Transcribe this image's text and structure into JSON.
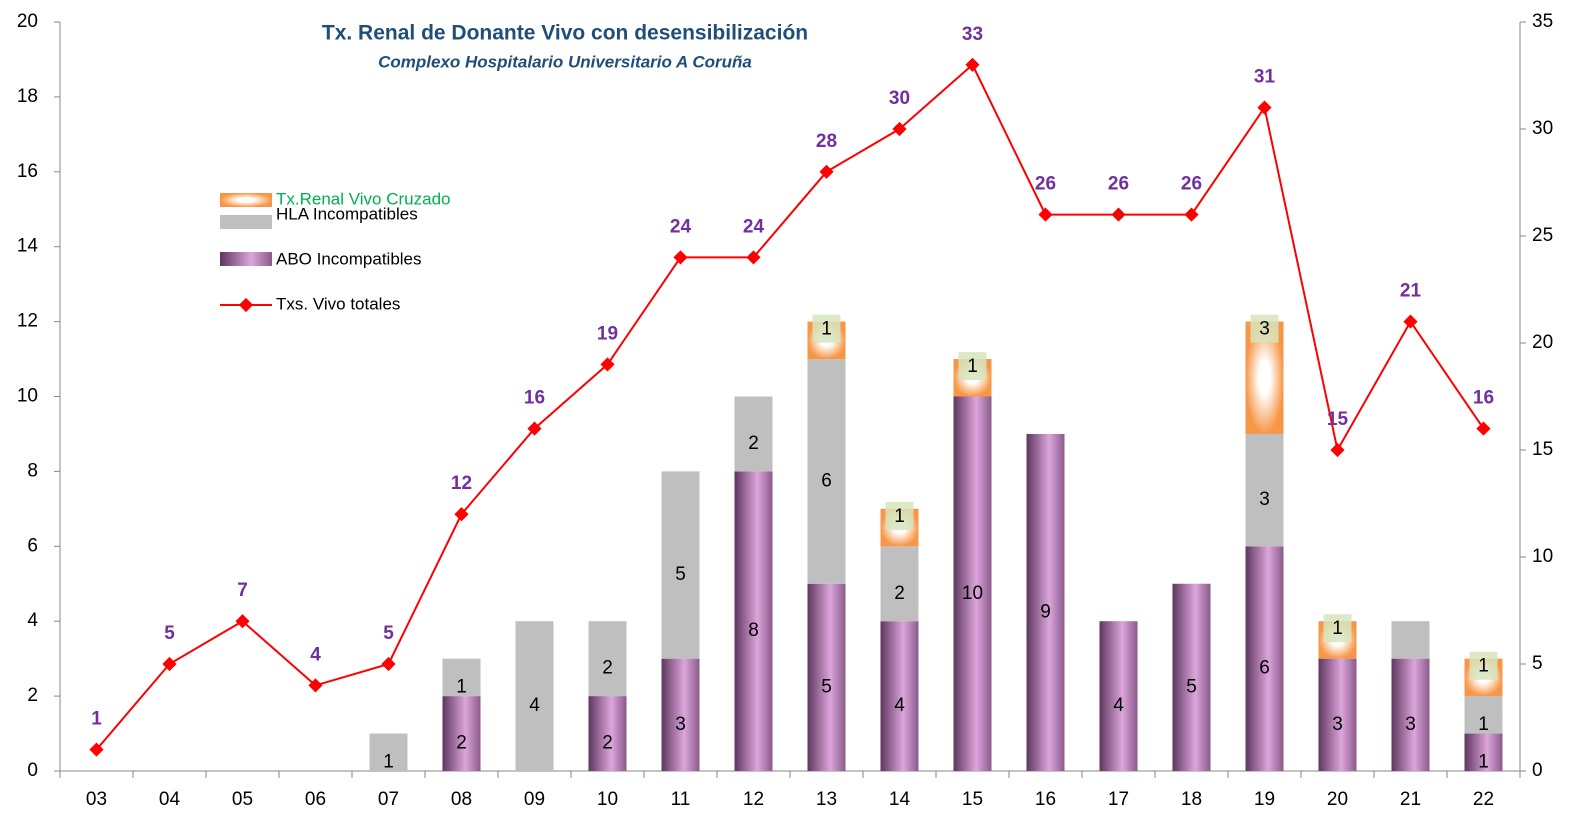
{
  "chart_data": {
    "type": "bar",
    "stacked": true,
    "title": "Tx. Renal de Donante Vivo con desensibilización",
    "subtitle": "Complexo Hospitalario Universitario A Coruña",
    "categories": [
      "03",
      "04",
      "05",
      "06",
      "07",
      "08",
      "09",
      "10",
      "11",
      "12",
      "13",
      "14",
      "15",
      "16",
      "17",
      "18",
      "19",
      "20",
      "21",
      "22"
    ],
    "series": [
      {
        "name": "ABO Incompatibles",
        "color": "#9b5f9b",
        "values": [
          0,
          0,
          0,
          0,
          0,
          2,
          0,
          2,
          3,
          8,
          5,
          4,
          10,
          9,
          4,
          5,
          6,
          3,
          3,
          1
        ]
      },
      {
        "name": "HLA Incompatibles",
        "color": "#bfbfbf",
        "values": [
          0,
          0,
          0,
          0,
          1,
          1,
          4,
          2,
          5,
          2,
          6,
          2,
          0,
          0,
          0,
          0,
          3,
          0,
          1,
          1
        ],
        "value_labels": [
          null,
          null,
          null,
          null,
          "1",
          "1",
          "4",
          "2",
          "5",
          "2",
          "6",
          "2",
          null,
          null,
          null,
          null,
          "3",
          null,
          null,
          "1"
        ]
      },
      {
        "name": "Tx.Renal Vivo Cruzado",
        "color": "#f79646",
        "values": [
          0,
          0,
          0,
          0,
          0,
          0,
          0,
          0,
          0,
          0,
          1,
          1,
          1,
          0,
          0,
          0,
          3,
          1,
          0,
          1
        ]
      },
      {
        "name": "Txs. Vivo totales",
        "type": "line",
        "axis": "y2",
        "color": "#ff0000",
        "values": [
          1,
          5,
          7,
          4,
          5,
          12,
          16,
          19,
          24,
          24,
          28,
          30,
          33,
          26,
          26,
          26,
          31,
          15,
          21,
          16
        ]
      }
    ],
    "ylim": [
      0,
      20
    ],
    "yticks": [
      0,
      2,
      4,
      6,
      8,
      10,
      12,
      14,
      16,
      18,
      20
    ],
    "y2lim": [
      0,
      35
    ],
    "y2ticks": [
      0,
      5,
      10,
      15,
      20,
      25,
      30,
      35
    ],
    "legend": "upper left"
  }
}
